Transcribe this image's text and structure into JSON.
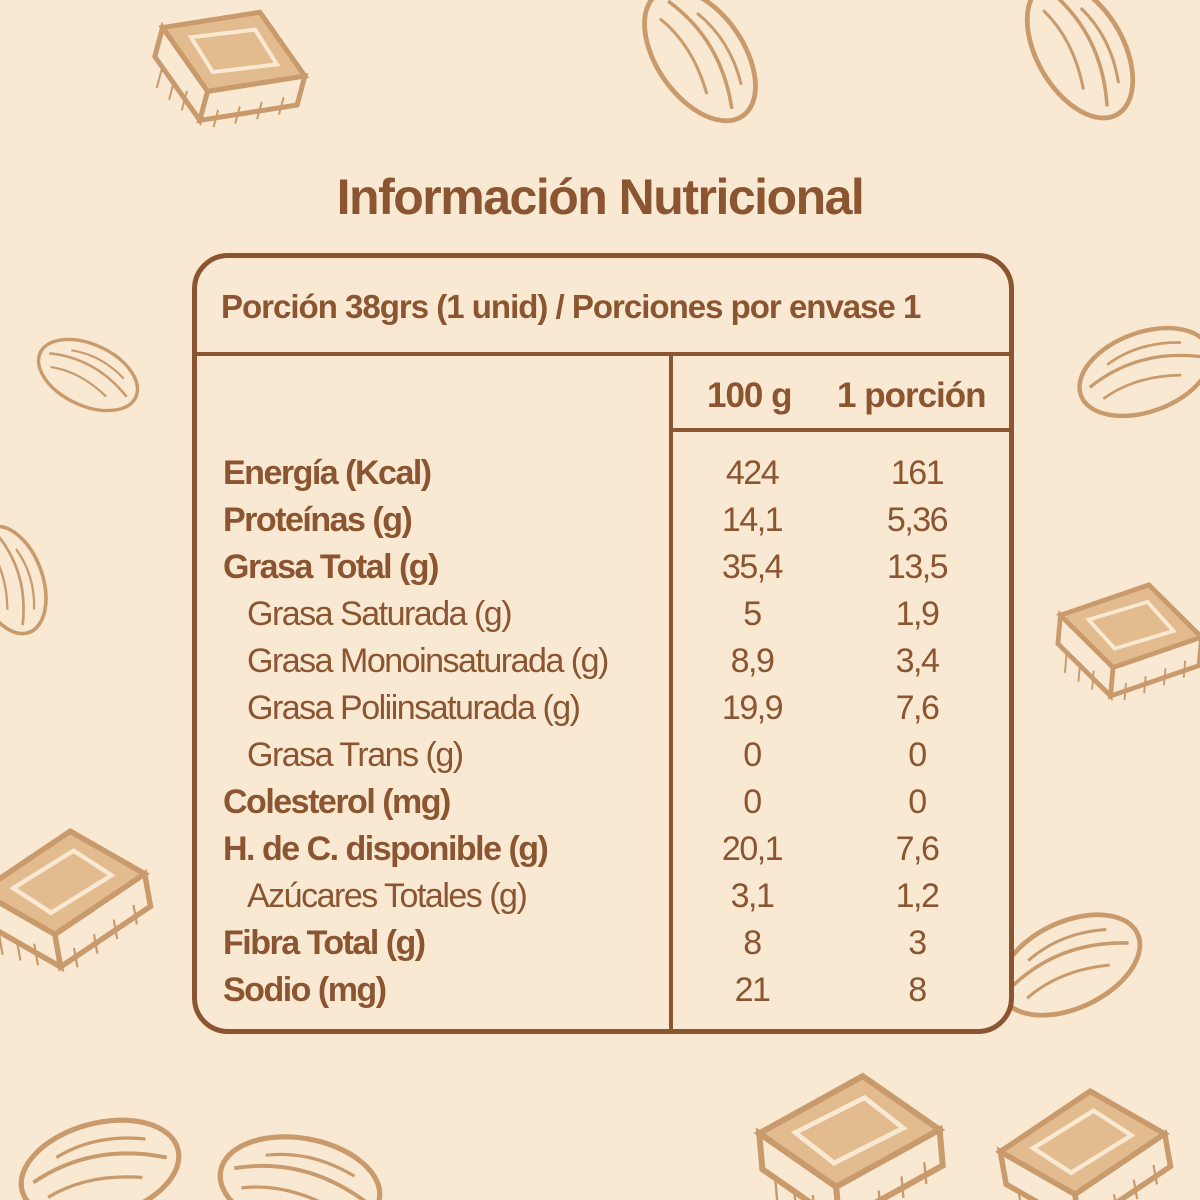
{
  "title": "Información Nutricional",
  "serving": "Porción 38grs (1 unid) / Porciones por envase 1",
  "columns": {
    "per100": "100 g",
    "perPortion": "1 porción"
  },
  "rows": [
    {
      "label": "Energía (Kcal)",
      "v100": "424",
      "vPortion": "161",
      "style": "bold"
    },
    {
      "label": "Proteínas (g)",
      "v100": "14,1",
      "vPortion": "5,36",
      "style": "bold"
    },
    {
      "label": "Grasa Total (g)",
      "v100": "35,4",
      "vPortion": "13,5",
      "style": "bold"
    },
    {
      "label": "Grasa Saturada (g)",
      "v100": "5",
      "vPortion": "1,9",
      "style": "sub"
    },
    {
      "label": "Grasa Monoinsaturada (g)",
      "v100": "8,9",
      "vPortion": "3,4",
      "style": "sub"
    },
    {
      "label": "Grasa Poliinsaturada (g)",
      "v100": "19,9",
      "vPortion": "7,6",
      "style": "sub"
    },
    {
      "label": "Grasa Trans (g)",
      "v100": "0",
      "vPortion": "0",
      "style": "sub"
    },
    {
      "label": "Colesterol (mg)",
      "v100": "0",
      "vPortion": "0",
      "style": "bold"
    },
    {
      "label": "H. de C. disponible (g)",
      "v100": "20,1",
      "vPortion": "7,6",
      "style": "bold"
    },
    {
      "label": "Azúcares Totales (g)",
      "v100": "3,1",
      "vPortion": "1,2",
      "style": "sub"
    },
    {
      "label": "Fibra Total (g)",
      "v100": "8",
      "vPortion": "3",
      "style": "bold"
    },
    {
      "label": "Sodio (mg)",
      "v100": "21",
      "vPortion": "8",
      "style": "bold"
    }
  ],
  "colors": {
    "background": "#f9e9d3",
    "ink": "#8a5530",
    "illustration": "#c99a6c",
    "illustrationFill": "#e2bb8f"
  },
  "decorations": [
    "chocolate-piece-icon",
    "almond-icon"
  ]
}
